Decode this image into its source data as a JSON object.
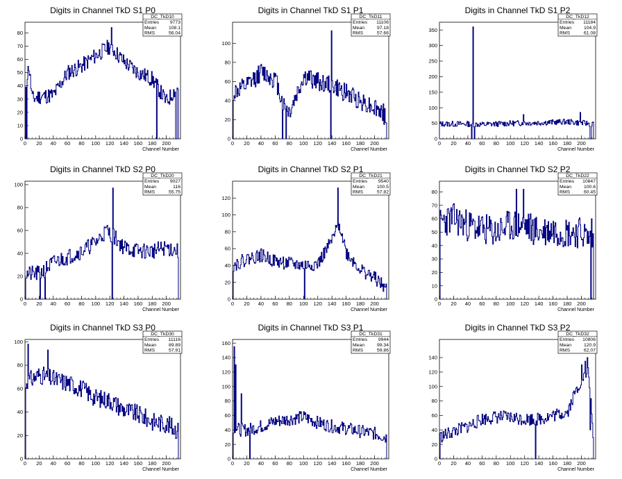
{
  "chart_data": [
    {
      "type": "histogram",
      "title": "Digits in Channel TkD S1 P0",
      "xlabel": "Channel Number",
      "ylabel": "",
      "xlim": [
        0,
        220
      ],
      "ylim": [
        0,
        88
      ],
      "xticks": [
        0,
        20,
        40,
        60,
        80,
        100,
        120,
        140,
        160,
        180,
        200
      ],
      "yticks": [
        0,
        10,
        20,
        30,
        40,
        50,
        60,
        70,
        80
      ],
      "stats": {
        "name": "DC_TkD10",
        "entries": "9773",
        "mean": "108.1",
        "rms": "56.04"
      },
      "trend": [
        [
          0,
          38
        ],
        [
          5,
          55
        ],
        [
          10,
          30
        ],
        [
          20,
          32
        ],
        [
          40,
          33
        ],
        [
          60,
          50
        ],
        [
          80,
          55
        ],
        [
          100,
          63
        ],
        [
          120,
          70
        ],
        [
          140,
          58
        ],
        [
          160,
          50
        ],
        [
          180,
          45
        ],
        [
          200,
          28
        ],
        [
          216,
          40
        ]
      ],
      "noise": 6,
      "seed": 11,
      "spikes": [
        [
          0,
          0
        ],
        [
          2,
          0
        ],
        [
          186,
          0
        ],
        [
          213,
          0
        ],
        [
          214,
          0
        ],
        [
          122,
          84
        ]
      ]
    },
    {
      "type": "histogram",
      "title": "Digits in Channel TkD S1 P1",
      "xlabel": "Channel Number",
      "ylabel": "",
      "xlim": [
        0,
        220
      ],
      "ylim": [
        0,
        122
      ],
      "xticks": [
        0,
        20,
        40,
        60,
        80,
        100,
        120,
        140,
        160,
        180,
        200
      ],
      "yticks": [
        0,
        20,
        40,
        60,
        80,
        100
      ],
      "stats": {
        "name": "DC_TkD11",
        "entries": "11106",
        "mean": "97.18",
        "rms": "57.66"
      },
      "trend": [
        [
          0,
          48
        ],
        [
          20,
          55
        ],
        [
          40,
          70
        ],
        [
          60,
          62
        ],
        [
          72,
          35
        ],
        [
          80,
          28
        ],
        [
          100,
          65
        ],
        [
          120,
          60
        ],
        [
          140,
          55
        ],
        [
          160,
          48
        ],
        [
          180,
          40
        ],
        [
          200,
          33
        ],
        [
          216,
          25
        ]
      ],
      "noise": 10,
      "seed": 12,
      "spikes": [
        [
          70,
          0
        ],
        [
          75,
          0
        ],
        [
          138,
          0
        ],
        [
          139,
          113
        ],
        [
          213,
          15
        ],
        [
          0,
          0
        ]
      ]
    },
    {
      "type": "histogram",
      "title": "Digits in Channel TkD S1 P2",
      "xlabel": "Channel Number",
      "ylabel": "",
      "xlim": [
        0,
        220
      ],
      "ylim": [
        0,
        375
      ],
      "xticks": [
        0,
        20,
        40,
        60,
        80,
        100,
        120,
        140,
        160,
        180,
        200
      ],
      "yticks": [
        0,
        50,
        100,
        150,
        200,
        250,
        300,
        350
      ],
      "stats": {
        "name": "DC_TkD12",
        "entries": "11184",
        "mean": "104.9",
        "rms": "61.08"
      },
      "trend": [
        [
          0,
          48
        ],
        [
          40,
          48
        ],
        [
          60,
          46
        ],
        [
          100,
          50
        ],
        [
          140,
          52
        ],
        [
          180,
          55
        ],
        [
          216,
          48
        ]
      ],
      "noise": 9,
      "seed": 13,
      "spikes": [
        [
          47,
          360
        ],
        [
          45,
          0
        ],
        [
          49,
          0
        ],
        [
          212,
          0
        ],
        [
          213,
          0
        ],
        [
          118,
          78
        ],
        [
          198,
          85
        ]
      ]
    },
    {
      "type": "histogram",
      "title": "Digits in Channel TkD S2 P0",
      "xlabel": "Channel Number",
      "ylabel": "",
      "xlim": [
        0,
        220
      ],
      "ylim": [
        0,
        103
      ],
      "xticks": [
        0,
        20,
        40,
        60,
        80,
        100,
        120,
        140,
        160,
        180,
        200
      ],
      "yticks": [
        0,
        20,
        40,
        60,
        80,
        100
      ],
      "stats": {
        "name": "DC_TkD20",
        "entries": "9027",
        "mean": "116",
        "rms": "55.75"
      },
      "trend": [
        [
          0,
          22
        ],
        [
          20,
          22
        ],
        [
          40,
          32
        ],
        [
          60,
          37
        ],
        [
          80,
          42
        ],
        [
          100,
          50
        ],
        [
          115,
          60
        ],
        [
          125,
          55
        ],
        [
          140,
          45
        ],
        [
          160,
          42
        ],
        [
          180,
          42
        ],
        [
          200,
          45
        ],
        [
          216,
          42
        ]
      ],
      "noise": 7,
      "seed": 21,
      "spikes": [
        [
          0,
          0
        ],
        [
          21,
          0
        ],
        [
          28,
          0
        ],
        [
          123,
          0
        ],
        [
          124,
          97
        ]
      ]
    },
    {
      "type": "histogram",
      "title": "Digits in Channel TkD S2 P1",
      "xlabel": "Channel Number",
      "ylabel": "",
      "xlim": [
        0,
        220
      ],
      "ylim": [
        0,
        140
      ],
      "xticks": [
        0,
        20,
        40,
        60,
        80,
        100,
        120,
        140,
        160,
        180,
        200
      ],
      "yticks": [
        0,
        20,
        40,
        60,
        80,
        100,
        120
      ],
      "stats": {
        "name": "DC_TkD21",
        "entries": "9540",
        "mean": "100.5",
        "rms": "57.82"
      },
      "trend": [
        [
          0,
          40
        ],
        [
          20,
          48
        ],
        [
          40,
          52
        ],
        [
          60,
          45
        ],
        [
          80,
          42
        ],
        [
          100,
          40
        ],
        [
          120,
          42
        ],
        [
          140,
          70
        ],
        [
          150,
          90
        ],
        [
          160,
          55
        ],
        [
          180,
          35
        ],
        [
          200,
          25
        ],
        [
          216,
          12
        ]
      ],
      "noise": 8,
      "seed": 22,
      "spikes": [
        [
          101,
          0
        ],
        [
          148,
          132
        ],
        [
          0,
          0
        ]
      ]
    },
    {
      "type": "histogram",
      "title": "Digits in Channel TkD S2 P2",
      "xlabel": "Channel Number",
      "ylabel": "",
      "xlim": [
        0,
        220
      ],
      "ylim": [
        0,
        88
      ],
      "xticks": [
        0,
        20,
        40,
        60,
        80,
        100,
        120,
        140,
        160,
        180,
        200
      ],
      "yticks": [
        0,
        10,
        20,
        30,
        40,
        50,
        60,
        70,
        80
      ],
      "stats": {
        "name": "DC_TkD22",
        "entries": "10847",
        "mean": "100.6",
        "rms": "60.45"
      },
      "trend": [
        [
          0,
          58
        ],
        [
          20,
          60
        ],
        [
          40,
          55
        ],
        [
          60,
          52
        ],
        [
          80,
          50
        ],
        [
          100,
          55
        ],
        [
          120,
          55
        ],
        [
          140,
          50
        ],
        [
          160,
          52
        ],
        [
          180,
          50
        ],
        [
          200,
          50
        ],
        [
          210,
          45
        ]
      ],
      "noise": 12,
      "seed": 23,
      "spikes": [
        [
          108,
          82
        ],
        [
          118,
          82
        ],
        [
          0,
          0
        ],
        [
          213,
          0
        ],
        [
          214,
          60
        ]
      ]
    },
    {
      "type": "histogram",
      "title": "Digits in Channel TkD S3 P0",
      "xlabel": "Channel Number",
      "ylabel": "",
      "xlim": [
        0,
        220
      ],
      "ylim": [
        0,
        102
      ],
      "xticks": [
        0,
        20,
        40,
        60,
        80,
        100,
        120,
        140,
        160,
        180,
        200
      ],
      "yticks": [
        0,
        20,
        40,
        60,
        80,
        100
      ],
      "stats": {
        "name": "DC_TkD30",
        "entries": "11116",
        "mean": "89.89",
        "rms": "57.91"
      },
      "trend": [
        [
          0,
          65
        ],
        [
          20,
          72
        ],
        [
          40,
          68
        ],
        [
          60,
          65
        ],
        [
          80,
          60
        ],
        [
          100,
          52
        ],
        [
          120,
          50
        ],
        [
          140,
          42
        ],
        [
          160,
          38
        ],
        [
          180,
          32
        ],
        [
          200,
          30
        ],
        [
          216,
          24
        ]
      ],
      "noise": 8,
      "seed": 31,
      "spikes": [
        [
          4,
          98
        ],
        [
          32,
          93
        ],
        [
          0,
          0
        ]
      ]
    },
    {
      "type": "histogram",
      "title": "Digits in Channel TkD S3 P1",
      "xlabel": "Channel Number",
      "ylabel": "",
      "xlim": [
        0,
        220
      ],
      "ylim": [
        0,
        165
      ],
      "xticks": [
        0,
        20,
        40,
        60,
        80,
        100,
        120,
        140,
        160,
        180,
        200
      ],
      "yticks": [
        0,
        20,
        40,
        60,
        80,
        100,
        120,
        140,
        160
      ],
      "stats": {
        "name": "DC_TkD31",
        "entries": "9944",
        "mean": "99.34",
        "rms": "59.86"
      },
      "trend": [
        [
          0,
          45
        ],
        [
          10,
          40
        ],
        [
          20,
          40
        ],
        [
          40,
          45
        ],
        [
          60,
          52
        ],
        [
          80,
          55
        ],
        [
          100,
          58
        ],
        [
          120,
          50
        ],
        [
          140,
          45
        ],
        [
          160,
          42
        ],
        [
          180,
          38
        ],
        [
          200,
          35
        ],
        [
          216,
          30
        ]
      ],
      "noise": 9,
      "seed": 32,
      "spikes": [
        [
          2,
          155
        ],
        [
          4,
          130
        ],
        [
          12,
          90
        ],
        [
          24,
          0
        ],
        [
          0,
          0
        ]
      ]
    },
    {
      "type": "histogram",
      "title": "Digits in Channel TkD S3 P2",
      "xlabel": "Channel Number",
      "ylabel": "",
      "xlim": [
        0,
        220
      ],
      "ylim": [
        0,
        165
      ],
      "xticks": [
        0,
        20,
        40,
        60,
        80,
        100,
        120,
        140,
        160,
        180,
        200
      ],
      "yticks": [
        0,
        20,
        40,
        60,
        80,
        100,
        120,
        140
      ],
      "stats": {
        "name": "DC_TkD32",
        "entries": "10806",
        "mean": "120.9",
        "rms": "62.07"
      },
      "trend": [
        [
          0,
          30
        ],
        [
          20,
          38
        ],
        [
          40,
          45
        ],
        [
          60,
          55
        ],
        [
          80,
          58
        ],
        [
          100,
          57
        ],
        [
          120,
          55
        ],
        [
          140,
          55
        ],
        [
          160,
          60
        ],
        [
          180,
          65
        ],
        [
          190,
          90
        ],
        [
          200,
          110
        ],
        [
          210,
          120
        ],
        [
          216,
          30
        ]
      ],
      "noise": 9,
      "seed": 33,
      "spikes": [
        [
          135,
          0
        ],
        [
          200,
          130
        ],
        [
          205,
          135
        ],
        [
          208,
          140
        ],
        [
          212,
          40
        ],
        [
          0,
          0
        ]
      ]
    }
  ]
}
